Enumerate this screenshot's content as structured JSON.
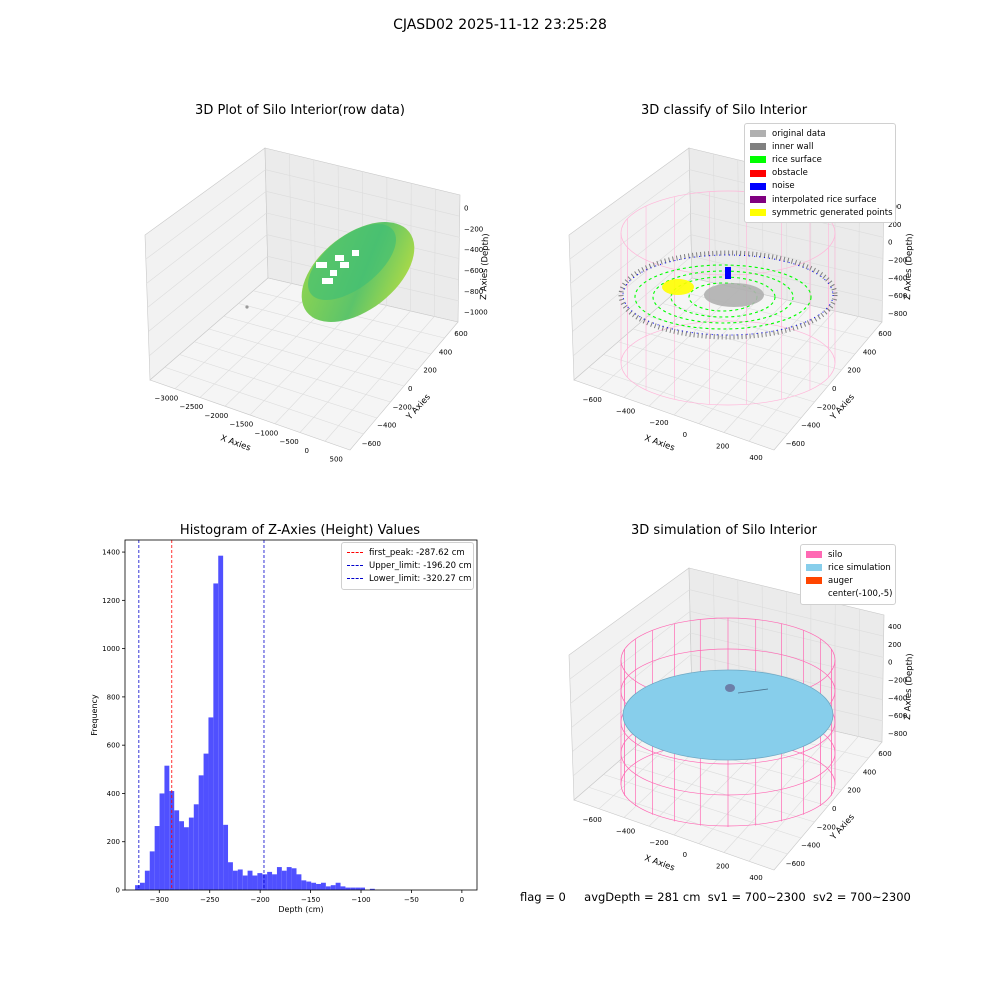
{
  "title": "CJASD02 2025-11-12 23:25:28",
  "footer": {
    "flag": "flag = 0",
    "avg_depth": "avgDepth = 281 cm",
    "sv1": "sv1 = 700~2300",
    "sv2": "sv2 = 700~2300"
  },
  "panels": {
    "raw": {
      "title": "3D Plot of Silo Interior(row data)",
      "xlabel": "X Axies",
      "ylabel": "Y Axies",
      "zlabel": "Z Axies (Depth)",
      "xticks": [
        "−3000",
        "−2500",
        "−2000",
        "−1500",
        "−1000",
        "−500",
        "0",
        "500"
      ],
      "yticks": [
        "600",
        "400",
        "200",
        "0",
        "−200",
        "−400",
        "−600"
      ],
      "zticks": [
        "0",
        "−200",
        "−400",
        "−600",
        "−800",
        "−1000"
      ]
    },
    "classify": {
      "title": "3D classify of Silo Interior",
      "xlabel": "X Axies",
      "ylabel": "Y Axies",
      "zlabel": "Z Axies (Depth)",
      "xticks": [
        "−600",
        "−400",
        "−200",
        "0",
        "200",
        "400"
      ],
      "yticks": [
        "600",
        "400",
        "200",
        "0",
        "−200",
        "−400",
        "−600"
      ],
      "zticks": [
        "400",
        "200",
        "0",
        "−200",
        "−400",
        "−600",
        "−800"
      ],
      "legend": [
        {
          "label": "original data",
          "color": "#b0b0b0"
        },
        {
          "label": "inner wall",
          "color": "#808080"
        },
        {
          "label": "rice surface",
          "color": "#00ff00"
        },
        {
          "label": "obstacle",
          "color": "#ff0000"
        },
        {
          "label": "noise",
          "color": "#0000ff"
        },
        {
          "label": "interpolated rice surface",
          "color": "#800080"
        },
        {
          "label": "symmetric generated points",
          "color": "#ffff00"
        }
      ]
    },
    "simulation": {
      "title": "3D simulation of Silo Interior",
      "xlabel": "X Axies",
      "ylabel": "Y Axies",
      "zlabel": "Z Axies (Depth)",
      "xticks": [
        "−600",
        "−400",
        "−200",
        "0",
        "200",
        "400"
      ],
      "yticks": [
        "600",
        "400",
        "200",
        "0",
        "−200",
        "−400",
        "−600"
      ],
      "zticks": [
        "400",
        "200",
        "0",
        "−200",
        "−400",
        "−600",
        "−800"
      ],
      "legend": [
        {
          "label": "silo",
          "color": "#ff69b4"
        },
        {
          "label": "rice simulation",
          "color": "#87ceeb"
        },
        {
          "label": "auger",
          "color": "#ff4500"
        },
        {
          "label": "center(-100,-5)",
          "color": ""
        }
      ]
    }
  },
  "chart_data": {
    "type": "bar",
    "title": "Histogram of Z-Axies (Height) Values",
    "xlabel": "Depth (cm)",
    "ylabel": "Frequency",
    "xlim": [
      -334,
      15
    ],
    "ylim": [
      0,
      1450
    ],
    "xticks": [
      -300,
      -250,
      -200,
      -150,
      -100,
      -50,
      0
    ],
    "yticks": [
      0,
      200,
      400,
      600,
      800,
      1000,
      1200,
      1400
    ],
    "bin_start": -324,
    "bin_width": 4.85,
    "bar_color": "#5050ff",
    "values": [
      20,
      30,
      80,
      160,
      265,
      400,
      515,
      410,
      330,
      285,
      260,
      300,
      355,
      475,
      565,
      715,
      1270,
      1385,
      270,
      115,
      80,
      85,
      60,
      80,
      60,
      70,
      65,
      75,
      65,
      95,
      80,
      95,
      90,
      65,
      40,
      35,
      30,
      25,
      30,
      15,
      20,
      30,
      15,
      10,
      10,
      10,
      10,
      0,
      5,
      0
    ],
    "vlines": [
      {
        "label": "first_peak: -287.62 cm",
        "x": -287.62,
        "color": "#ff0000"
      },
      {
        "label": "Upper_limit: -196.20 cm",
        "x": -196.2,
        "color": "#0000cc"
      },
      {
        "label": "Lower_limit: -320.27 cm",
        "x": -320.27,
        "color": "#0000cc"
      }
    ],
    "legend_position": "top-right",
    "grid": false
  }
}
